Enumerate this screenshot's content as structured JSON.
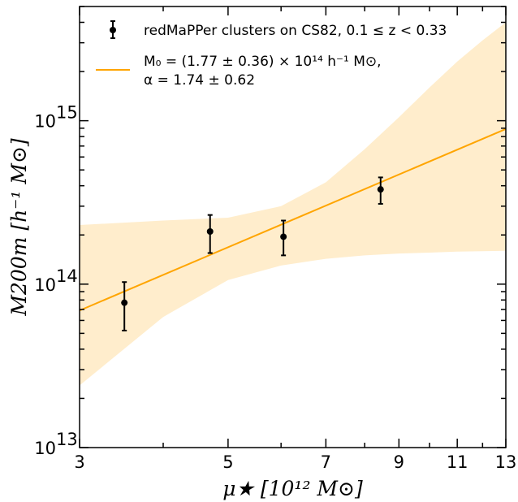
{
  "chart_data": {
    "type": "scatter",
    "xscale": "log",
    "yscale": "log",
    "xlim": [
      3,
      13
    ],
    "ylim": [
      10000000000000.0,
      5000000000000000.0
    ],
    "grid": false,
    "legend_placement": "top-left",
    "xlabel": "μ★ [10¹² M⊙]",
    "ylabel": "M200m [h⁻¹ M⊙]",
    "x_ticks": [
      {
        "value": 3,
        "label": "3"
      },
      {
        "value": 5,
        "label": "5"
      },
      {
        "value": 7,
        "label": "7"
      },
      {
        "value": 9,
        "label": "9"
      },
      {
        "value": 11,
        "label": "11"
      },
      {
        "value": 13,
        "label": "13"
      }
    ],
    "y_ticks": [
      {
        "value": 10000000000000.0,
        "base": "10",
        "exp": "13"
      },
      {
        "value": 100000000000000.0,
        "base": "10",
        "exp": "14"
      },
      {
        "value": 1000000000000000.0,
        "base": "10",
        "exp": "15"
      }
    ],
    "points": {
      "name": "redMaPPer clusters on CS82,  0.1 ≤ z < 0.33",
      "color": "#000000",
      "x": [
        3.5,
        4.7,
        6.05,
        8.45
      ],
      "y": [
        77000000000000.0,
        210000000000000.0,
        195000000000000.0,
        380000000000000.0
      ],
      "yerr_low": [
        52000000000000.0,
        155000000000000.0,
        150000000000000.0,
        310000000000000.0
      ],
      "yerr_high": [
        103000000000000.0,
        265000000000000.0,
        245000000000000.0,
        450000000000000.0
      ]
    },
    "fit": {
      "name_line1": "M₀ = (1.77 ± 0.36) × 10¹⁴ h⁻¹ M⊙,",
      "name_line2": "α = 1.74 ± 0.62",
      "line_color": "#ffa500",
      "band_color": "#ffedcc",
      "x": [
        3,
        13
      ],
      "y": [
        69000000000000.0,
        890000000000000.0
      ],
      "band_x": [
        3,
        4,
        5,
        6,
        7,
        8,
        9,
        10,
        11,
        12,
        13
      ],
      "band_low": [
        24000000000000.0,
        63000000000000.0,
        106000000000000.0,
        130000000000000.0,
        143000000000000.0,
        150000000000000.0,
        154000000000000.0,
        156000000000000.0,
        158000000000000.0,
        159000000000000.0,
        160000000000000.0
      ],
      "band_high": [
        230000000000000.0,
        245000000000000.0,
        255000000000000.0,
        300000000000000.0,
        420000000000000.0,
        670000000000000.0,
        1050000000000000.0,
        1600000000000000.0,
        2300000000000000.0,
        3100000000000000.0,
        4000000000000000.0
      ]
    }
  }
}
